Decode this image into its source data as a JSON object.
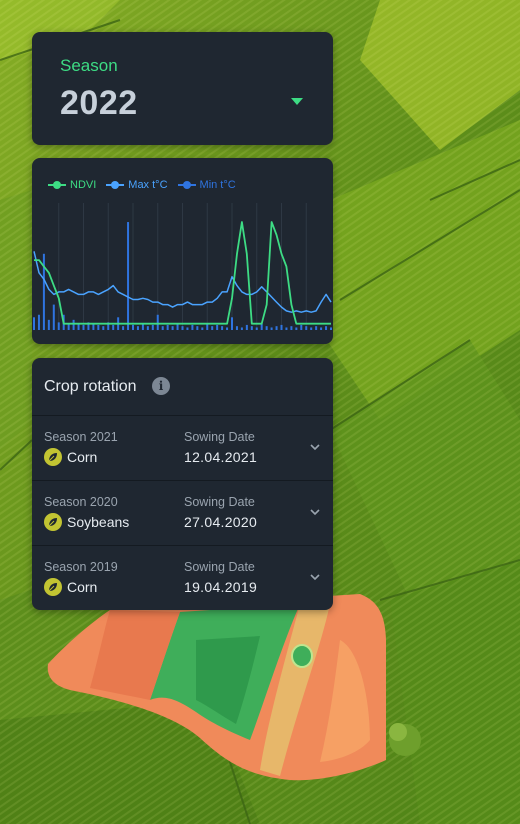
{
  "season": {
    "label": "Season",
    "year": "2022"
  },
  "chart": {
    "legend": [
      {
        "name": "NDVI",
        "color": "#3ddc84"
      },
      {
        "name": "Max t°C",
        "color": "#4aa3ff"
      },
      {
        "name": "Min t°C",
        "color": "#2f74e0"
      }
    ]
  },
  "chart_data": {
    "type": "line",
    "title": "",
    "xlabel": "",
    "ylabel": "",
    "x": [
      0,
      1,
      2,
      3,
      4,
      5,
      6,
      7,
      8,
      9,
      10,
      11,
      12,
      13,
      14,
      15,
      16,
      17,
      18,
      19,
      20,
      21,
      22,
      23,
      24,
      25,
      26,
      27,
      28,
      29,
      30,
      31,
      32,
      33,
      34,
      35,
      36,
      37,
      38,
      39,
      40,
      41,
      42,
      43,
      44,
      45,
      46,
      47,
      48,
      49,
      50,
      51,
      52,
      53,
      54,
      55,
      56,
      57,
      58,
      59,
      60
    ],
    "ylim": [
      0,
      1
    ],
    "series": [
      {
        "name": "NDVI",
        "values": [
          0.55,
          0.55,
          0.5,
          0.45,
          0.35,
          0.25,
          0.05,
          0.05,
          0.05,
          0.05,
          0.05,
          0.05,
          0.05,
          0.05,
          0.05,
          0.05,
          0.05,
          0.05,
          0.05,
          0.05,
          0.05,
          0.05,
          0.05,
          0.05,
          0.05,
          0.05,
          0.05,
          0.05,
          0.05,
          0.05,
          0.05,
          0.05,
          0.05,
          0.05,
          0.05,
          0.05,
          0.05,
          0.05,
          0.05,
          0.05,
          0.25,
          0.6,
          0.85,
          0.6,
          0.05,
          0.05,
          0.05,
          0.2,
          0.85,
          0.75,
          0.6,
          0.5,
          0.2,
          0.05,
          0.05,
          0.05,
          0.05,
          0.05,
          0.05,
          0.05,
          0.05
        ]
      },
      {
        "name": "Max t°C",
        "values": [
          0.62,
          0.45,
          0.4,
          0.32,
          0.28,
          0.3,
          0.3,
          0.32,
          0.3,
          0.28,
          0.28,
          0.3,
          0.3,
          0.28,
          0.3,
          0.32,
          0.35,
          0.3,
          0.28,
          0.26,
          0.24,
          0.24,
          0.25,
          0.24,
          0.22,
          0.22,
          0.2,
          0.2,
          0.18,
          0.2,
          0.2,
          0.22,
          0.2,
          0.2,
          0.2,
          0.22,
          0.22,
          0.25,
          0.3,
          0.3,
          0.42,
          0.35,
          0.3,
          0.28,
          0.28,
          0.3,
          0.34,
          0.3,
          0.26,
          0.22,
          0.18,
          0.15,
          0.14,
          0.15,
          0.14,
          0.15,
          0.14,
          0.15,
          0.22,
          0.28,
          0.22
        ]
      },
      {
        "name": "Min t°C",
        "values": [
          0.1,
          0.12,
          0.6,
          0.08,
          0.2,
          0.06,
          0.12,
          0.05,
          0.08,
          0.05,
          0.04,
          0.06,
          0.05,
          0.04,
          0.03,
          0.06,
          0.04,
          0.1,
          0.03,
          0.85,
          0.04,
          0.03,
          0.05,
          0.03,
          0.04,
          0.12,
          0.03,
          0.04,
          0.03,
          0.05,
          0.03,
          0.02,
          0.04,
          0.03,
          0.02,
          0.05,
          0.03,
          0.04,
          0.03,
          0.02,
          0.1,
          0.03,
          0.02,
          0.04,
          0.03,
          0.02,
          0.05,
          0.03,
          0.02,
          0.03,
          0.04,
          0.02,
          0.03,
          0.02,
          0.04,
          0.03,
          0.02,
          0.03,
          0.02,
          0.03,
          0.02
        ]
      }
    ]
  },
  "rotation": {
    "title": "Crop rotation",
    "info_icon": "i",
    "rows": [
      {
        "season": "Season 2021",
        "crop": "Corn",
        "date_label": "Sowing Date",
        "date": "12.04.2021"
      },
      {
        "season": "Season 2020",
        "crop": "Soybeans",
        "date_label": "Sowing Date",
        "date": "27.04.2020"
      },
      {
        "season": "Season 2019",
        "crop": "Corn",
        "date_label": "Sowing Date",
        "date": "19.04.2019"
      }
    ]
  },
  "icons": {
    "dropdown": "caret-down-icon",
    "info": "info-icon",
    "crop": "leaf-icon",
    "expand": "chevron-down-icon"
  }
}
